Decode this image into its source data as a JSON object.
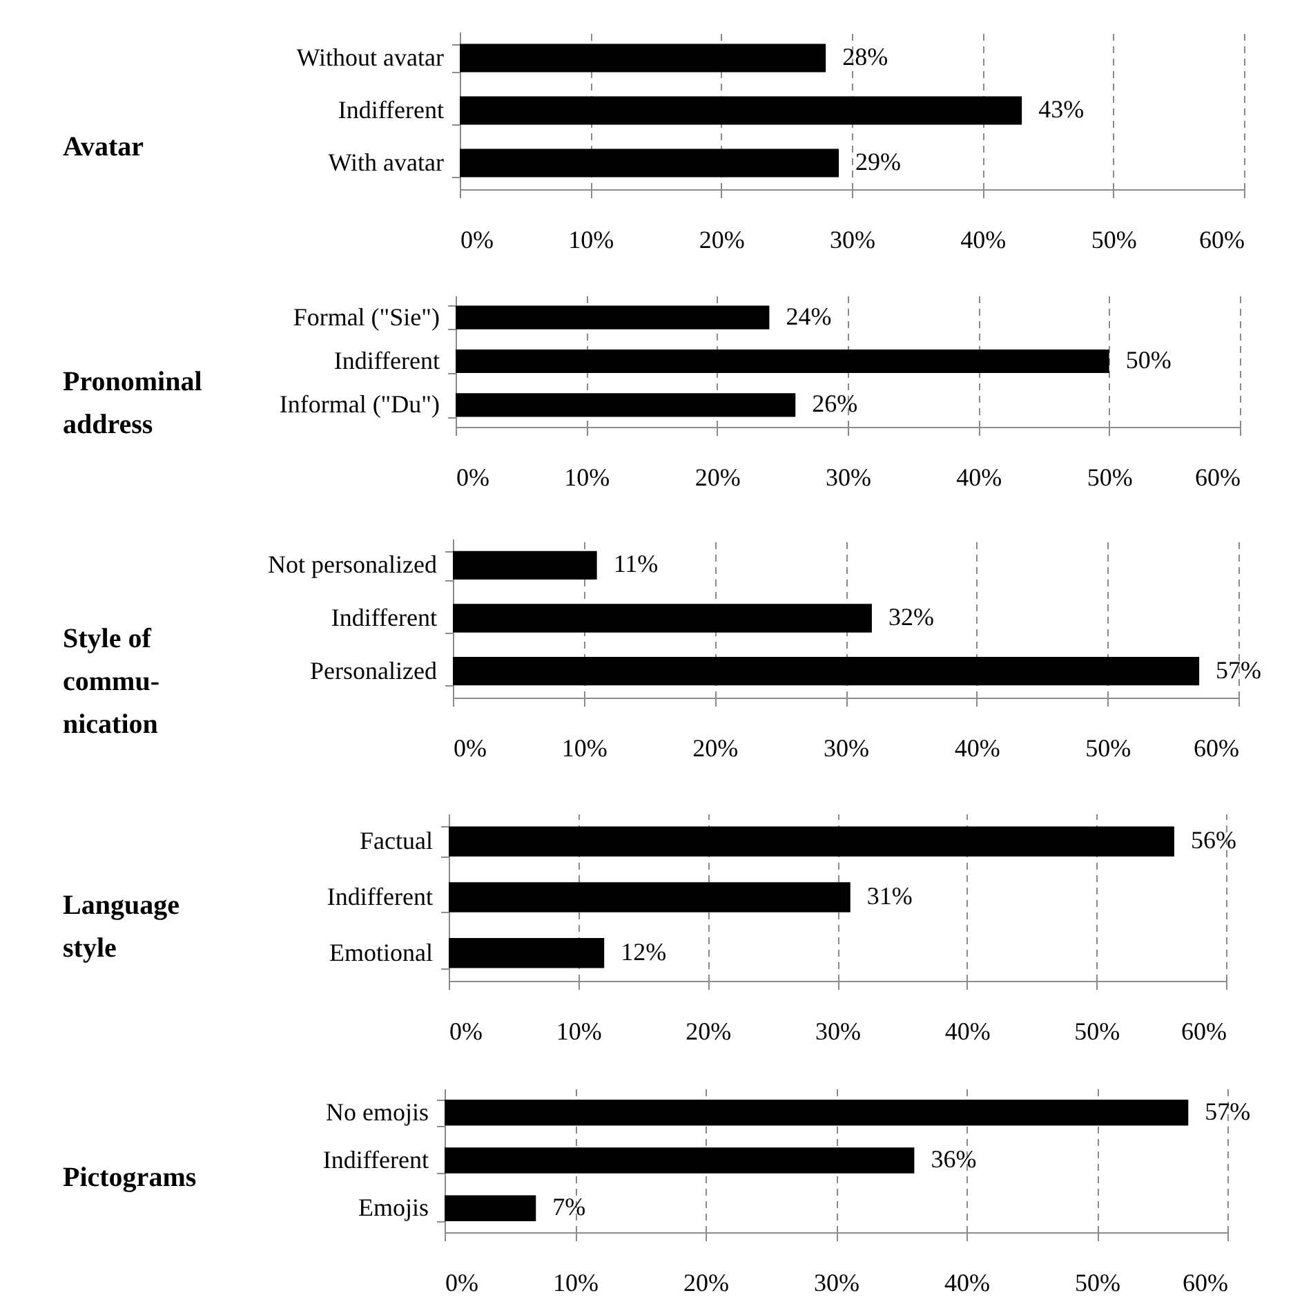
{
  "chart_data": [
    {
      "type": "bar",
      "orientation": "horizontal",
      "ylabel": "Avatar",
      "categories": [
        "Without avatar",
        "Indifferent",
        "With avatar"
      ],
      "values": [
        28,
        43,
        29
      ],
      "value_labels": [
        "28%",
        "43%",
        "29%"
      ],
      "color": "#000000",
      "xlim": [
        0,
        60
      ],
      "xticks": [
        {
          "value": 0,
          "label": "0%"
        },
        {
          "value": 10,
          "label": "10%"
        },
        {
          "value": 20,
          "label": "20%"
        },
        {
          "value": 30,
          "label": "30%"
        },
        {
          "value": 40,
          "label": "40%"
        },
        {
          "value": 50,
          "label": "50%"
        },
        {
          "value": 60,
          "label": "60%"
        }
      ],
      "grid": "x"
    },
    {
      "type": "bar",
      "orientation": "horizontal",
      "ylabel": "Pronominal\naddress",
      "categories": [
        "Formal (\"Sie\")",
        "Indifferent",
        "Informal (\"Du\")"
      ],
      "values": [
        24,
        50,
        26
      ],
      "value_labels": [
        "24%",
        "50%",
        "26%"
      ],
      "color": "#000000",
      "xlim": [
        0,
        60
      ],
      "xticks": [
        {
          "value": 0,
          "label": "0%"
        },
        {
          "value": 10,
          "label": "10%"
        },
        {
          "value": 20,
          "label": "20%"
        },
        {
          "value": 30,
          "label": "30%"
        },
        {
          "value": 40,
          "label": "40%"
        },
        {
          "value": 50,
          "label": "50%"
        },
        {
          "value": 60,
          "label": "60%"
        }
      ],
      "grid": "x"
    },
    {
      "type": "bar",
      "orientation": "horizontal",
      "ylabel": "Style of\ncommu-\nnication",
      "categories": [
        "Not personalized",
        "Indifferent",
        "Personalized"
      ],
      "values": [
        11,
        32,
        57
      ],
      "value_labels": [
        "11%",
        "32%",
        "57%"
      ],
      "color": "#000000",
      "xlim": [
        0,
        60
      ],
      "xticks": [
        {
          "value": 0,
          "label": "0%"
        },
        {
          "value": 10,
          "label": "10%"
        },
        {
          "value": 20,
          "label": "20%"
        },
        {
          "value": 30,
          "label": "30%"
        },
        {
          "value": 40,
          "label": "40%"
        },
        {
          "value": 50,
          "label": "50%"
        },
        {
          "value": 60,
          "label": "60%"
        }
      ],
      "grid": "x"
    },
    {
      "type": "bar",
      "orientation": "horizontal",
      "ylabel": "Language\nstyle",
      "categories": [
        "Factual",
        "Indifferent",
        "Emotional"
      ],
      "values": [
        56,
        31,
        12
      ],
      "value_labels": [
        "56%",
        "31%",
        "12%"
      ],
      "color": "#000000",
      "xlim": [
        0,
        60
      ],
      "xticks": [
        {
          "value": 0,
          "label": "0%"
        },
        {
          "value": 10,
          "label": "10%"
        },
        {
          "value": 20,
          "label": "20%"
        },
        {
          "value": 30,
          "label": "30%"
        },
        {
          "value": 40,
          "label": "40%"
        },
        {
          "value": 50,
          "label": "50%"
        },
        {
          "value": 60,
          "label": "60%"
        }
      ],
      "grid": "x"
    },
    {
      "type": "bar",
      "orientation": "horizontal",
      "ylabel": "Pictograms",
      "categories": [
        "No emojis",
        "Indifferent",
        "Emojis"
      ],
      "values": [
        57,
        36,
        7
      ],
      "value_labels": [
        "57%",
        "36%",
        "7%"
      ],
      "color": "#000000",
      "xlim": [
        0,
        60
      ],
      "xticks": [
        {
          "value": 0,
          "label": "0%"
        },
        {
          "value": 10,
          "label": "10%"
        },
        {
          "value": 20,
          "label": "20%"
        },
        {
          "value": 30,
          "label": "30%"
        },
        {
          "value": 40,
          "label": "40%"
        },
        {
          "value": 50,
          "label": "50%"
        },
        {
          "value": 60,
          "label": "60%"
        }
      ],
      "grid": "x"
    }
  ]
}
